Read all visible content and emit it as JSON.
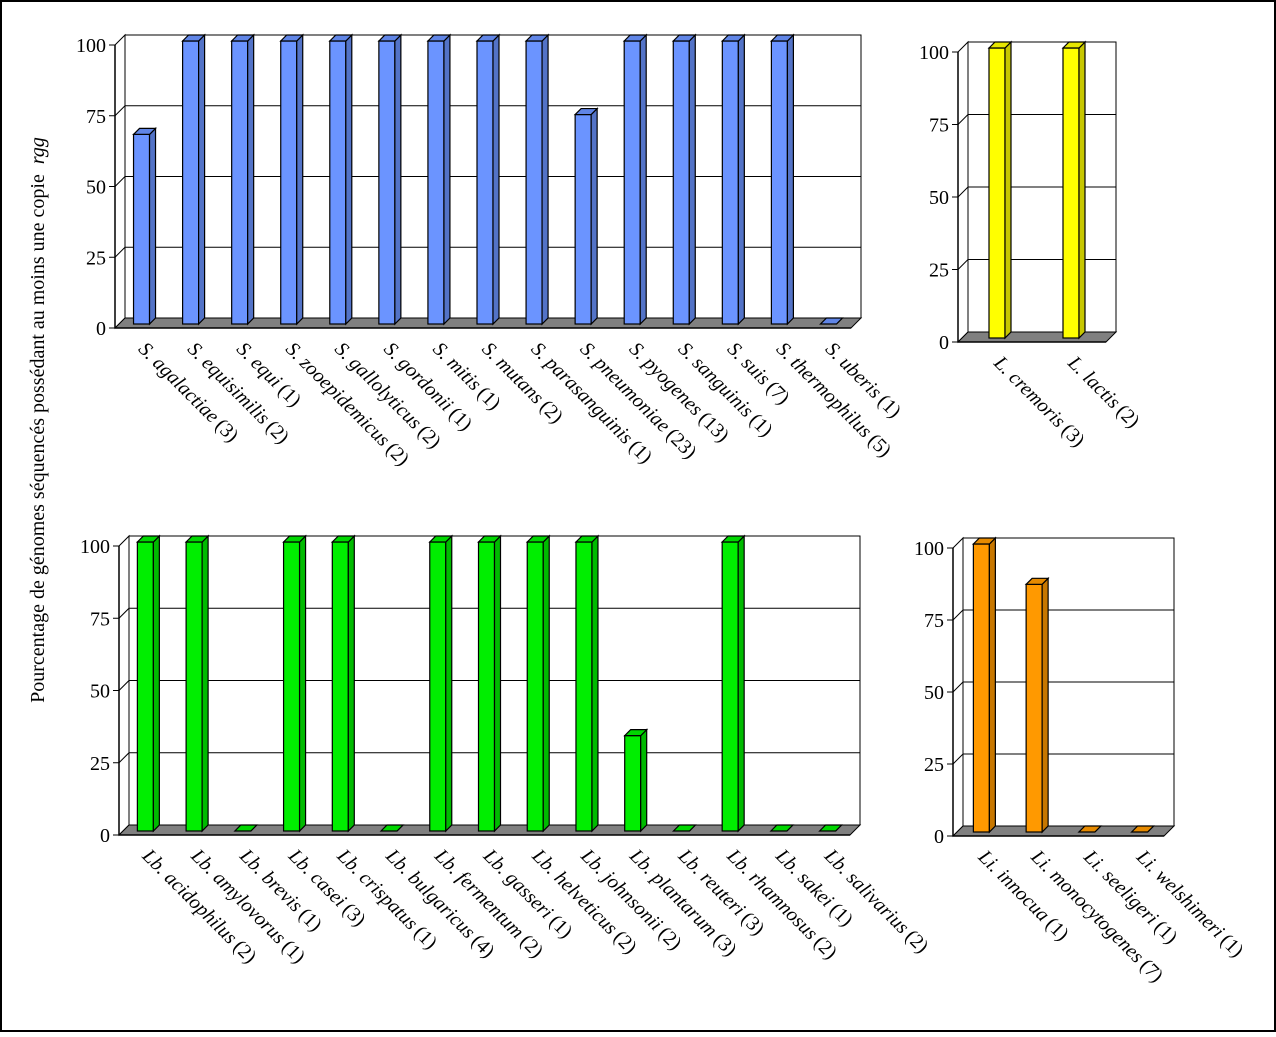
{
  "figure": {
    "ylabel_prefix": "Pourcentage de génomes séquencés possédant au moins une copie",
    "ylabel_italic": "rgg"
  },
  "chart_data": [
    {
      "type": "bar",
      "panel": "top-left",
      "color": "#6b94ff",
      "ylim": [
        0,
        100
      ],
      "yticks": [
        "0",
        "25",
        "50",
        "75",
        "100"
      ],
      "grid": true,
      "categories": [
        {
          "name": "S. agalactiae",
          "count": "(3)"
        },
        {
          "name": "S. equisimilis",
          "count": "(2)"
        },
        {
          "name": "S. equi",
          "count": "(1)"
        },
        {
          "name": "S. zooepidemicus",
          "count": "(2)"
        },
        {
          "name": "S. gallolyticus",
          "count": "(2)"
        },
        {
          "name": "S. gordonii",
          "count": "(1)"
        },
        {
          "name": "S. mitis",
          "count": "(1)"
        },
        {
          "name": "S. mutans",
          "count": "(2)"
        },
        {
          "name": "S. parasanguinis",
          "count": "(1)"
        },
        {
          "name": "S. pneumoniae",
          "count": "(23)"
        },
        {
          "name": "S. pyogenes",
          "count": "(13)"
        },
        {
          "name": "S. sanguinis",
          "count": "(1)"
        },
        {
          "name": "S. suis",
          "count": "(7)"
        },
        {
          "name": "S. thermophilus",
          "count": "(5)"
        },
        {
          "name": "S. uberis",
          "count": "(1)"
        }
      ],
      "values": [
        67,
        100,
        100,
        100,
        100,
        100,
        100,
        100,
        100,
        74,
        100,
        100,
        100,
        100,
        0
      ]
    },
    {
      "type": "bar",
      "panel": "top-right",
      "color": "#ffff00",
      "ylim": [
        0,
        100
      ],
      "yticks": [
        "0",
        "25",
        "50",
        "75",
        "100"
      ],
      "grid": true,
      "categories": [
        {
          "name": "L. cremoris",
          "count": "(3)"
        },
        {
          "name": "L. lactis",
          "count": "(2)"
        }
      ],
      "values": [
        100,
        100
      ]
    },
    {
      "type": "bar",
      "panel": "bottom-left",
      "color": "#00ee00",
      "ylim": [
        0,
        100
      ],
      "yticks": [
        "0",
        "25",
        "50",
        "75",
        "100"
      ],
      "grid": true,
      "categories": [
        {
          "name": "Lb. acidophilus",
          "count": "(2)"
        },
        {
          "name": "Lb. amylovorus",
          "count": "(1)"
        },
        {
          "name": "Lb. brevis",
          "count": "(1)"
        },
        {
          "name": "Lb. casei",
          "count": "(3)"
        },
        {
          "name": "Lb. crispatus",
          "count": "(1)"
        },
        {
          "name": "Lb. bulgaricus",
          "count": "(4)"
        },
        {
          "name": "Lb. fermentum",
          "count": "(2)"
        },
        {
          "name": "Lb. gasseri",
          "count": "(1)"
        },
        {
          "name": "Lb. helveticus",
          "count": "(2)"
        },
        {
          "name": "Lb. johnsonii",
          "count": "(2)"
        },
        {
          "name": "Lb. plantarum",
          "count": "(3)"
        },
        {
          "name": "Lb. reuteri",
          "count": "(3)"
        },
        {
          "name": "Lb. rhamnosus",
          "count": "(2)"
        },
        {
          "name": "Lb. sakei",
          "count": "(1)"
        },
        {
          "name": "Lb. salivarius",
          "count": "(2)"
        }
      ],
      "values": [
        100,
        100,
        0,
        100,
        100,
        0,
        100,
        100,
        100,
        100,
        33,
        0,
        100,
        0,
        0
      ]
    },
    {
      "type": "bar",
      "panel": "bottom-right",
      "color": "#ff9900",
      "ylim": [
        0,
        100
      ],
      "yticks": [
        "0",
        "25",
        "50",
        "75",
        "100"
      ],
      "grid": true,
      "categories": [
        {
          "name": "Li. innocua",
          "count": "(1)"
        },
        {
          "name": "Li. monocytogenes",
          "count": "(7)"
        },
        {
          "name": "Li. seeligeri",
          "count": "(1)"
        },
        {
          "name": "Li. welshimeri",
          "count": "(1)"
        }
      ],
      "values": [
        100,
        86,
        0,
        0
      ]
    }
  ]
}
